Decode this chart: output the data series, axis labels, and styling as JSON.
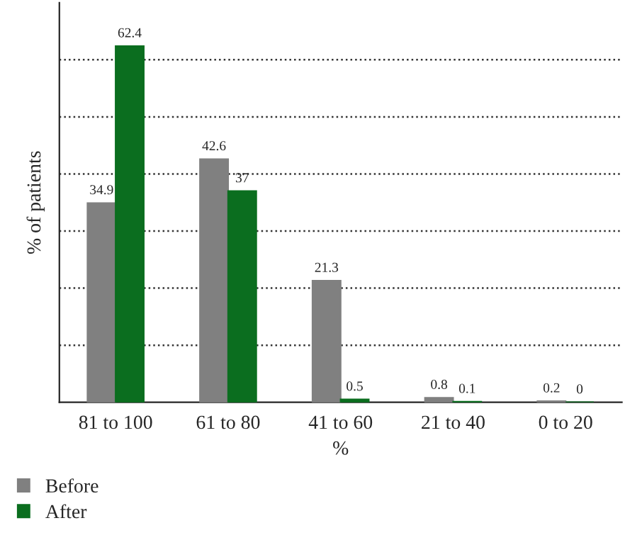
{
  "chart_data": {
    "type": "bar",
    "xlabel": "%",
    "ylabel": "% of patients",
    "categories": [
      "81 to 100",
      "61 to 80",
      "41 to 60",
      "21 to 40",
      "0 to 20"
    ],
    "series": [
      {
        "name": "Before",
        "color": "#808080",
        "values": [
          34.9,
          42.6,
          21.3,
          0.8,
          0.2
        ]
      },
      {
        "name": "After",
        "color": "#0b6e1f",
        "values": [
          62.4,
          37,
          0.5,
          0.1,
          0
        ]
      }
    ],
    "ylim": [
      0,
      70
    ],
    "yticks": [
      {
        "value": 10,
        "label": null
      },
      {
        "value": 20,
        "label": null
      },
      {
        "value": 30,
        "label": null
      },
      {
        "value": 40,
        "label": null
      },
      {
        "value": 50,
        "label": null
      },
      {
        "value": 60,
        "label": null
      }
    ],
    "grid": "y",
    "legend": "bottom",
    "data_labels": true
  }
}
